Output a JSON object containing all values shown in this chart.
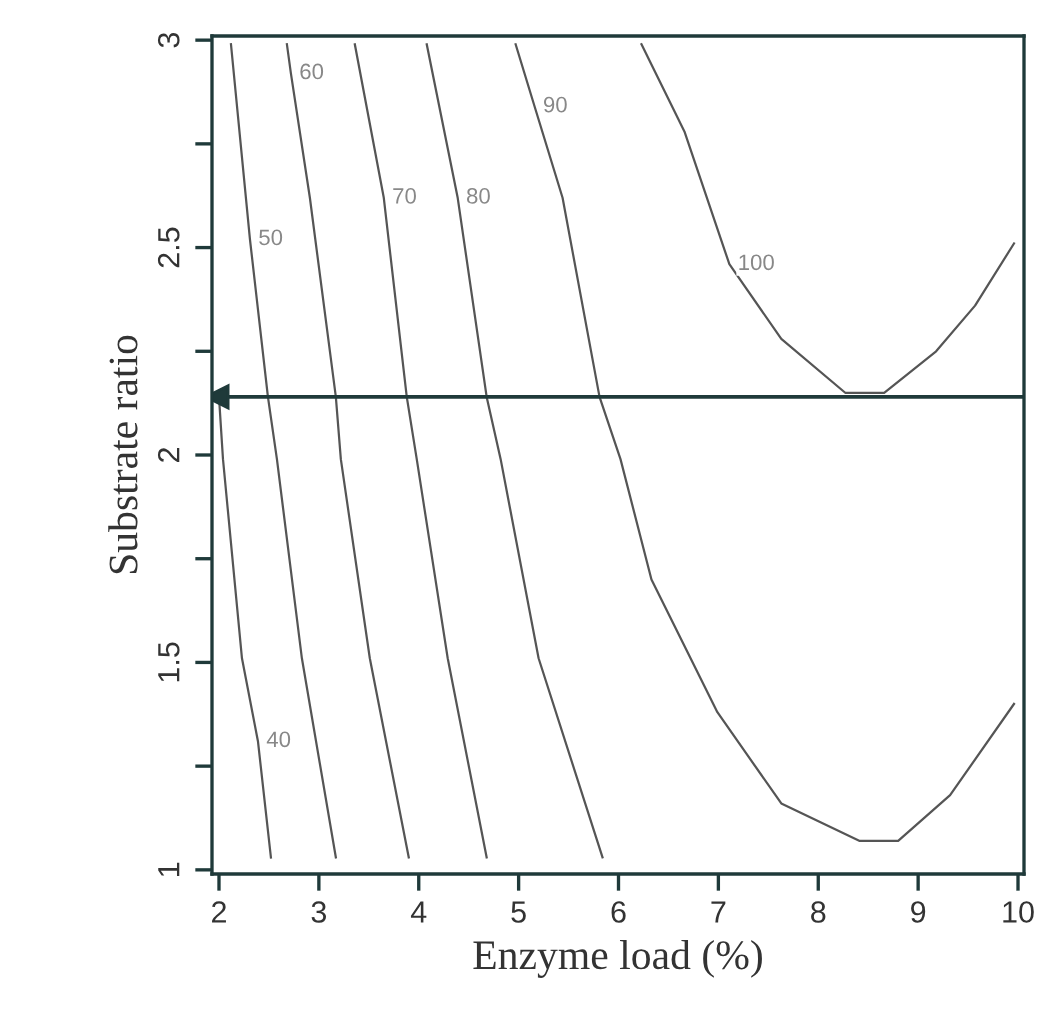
{
  "chart_data": {
    "type": "line",
    "xlabel": "Enzyme load (%)",
    "ylabel": "Substrate ratio",
    "xlim": [
      1.93,
      10.06
    ],
    "ylim": [
      0.99,
      3.01
    ],
    "xticks": [
      2,
      3,
      4,
      5,
      6,
      7,
      8,
      9,
      10
    ],
    "yticks": [
      1,
      {
        "value": 1.25,
        "label": null
      },
      1.5,
      {
        "value": 1.75,
        "label": null
      },
      2,
      {
        "value": 2.25,
        "label": null
      },
      2.5,
      {
        "value": 2.75,
        "label": null
      },
      3
    ],
    "grid": false,
    "marker": "none",
    "line_style": "solid",
    "series": [
      {
        "color": "#555555",
        "x": [
          2.0,
          2.04,
          2.23,
          2.39,
          2.52
        ],
        "values": [
          2.14,
          1.99,
          1.51,
          1.31,
          1.03
        ]
      },
      {
        "color": "#555555",
        "x": [
          2.12,
          2.31,
          2.49,
          2.58,
          2.83,
          3.17
        ],
        "values": [
          2.99,
          2.52,
          2.14,
          1.99,
          1.51,
          1.03
        ]
      },
      {
        "color": "#555555",
        "x": [
          2.68,
          2.72,
          2.91,
          3.17,
          3.22,
          3.51,
          3.9
        ],
        "values": [
          2.99,
          2.92,
          2.62,
          2.14,
          1.99,
          1.51,
          1.03
        ]
      },
      {
        "color": "#555555",
        "x": [
          3.36,
          3.65,
          3.88,
          3.98,
          4.29,
          4.68
        ],
        "values": [
          2.99,
          2.62,
          2.14,
          1.99,
          1.51,
          1.03
        ]
      },
      {
        "color": "#555555",
        "x": [
          4.08,
          4.39,
          4.68,
          4.82,
          5.2,
          5.84
        ],
        "values": [
          2.99,
          2.62,
          2.14,
          1.99,
          1.51,
          1.03
        ]
      },
      {
        "color": "#555555",
        "x": [
          4.97,
          5.16,
          5.44,
          5.81,
          6.02,
          6.33,
          6.99,
          7.63,
          8.41,
          8.8,
          9.32,
          9.96
        ],
        "values": [
          2.99,
          2.84,
          2.62,
          2.14,
          1.99,
          1.7,
          1.38,
          1.16,
          1.07,
          1.07,
          1.18,
          1.4
        ]
      },
      {
        "color": "#555555",
        "x": [
          6.23,
          6.66,
          7.11,
          7.63,
          8.27,
          8.66,
          9.18,
          9.57,
          9.96
        ],
        "values": [
          2.99,
          2.78,
          2.46,
          2.28,
          2.15,
          2.15,
          2.25,
          2.36,
          2.51
        ]
      }
    ],
    "ref_lines": [
      {
        "axis": "y",
        "value": 2.14,
        "color": "#1f3a3a"
      }
    ],
    "annotations": [
      {
        "text": "40",
        "x": 2.39,
        "y": 1.31
      },
      {
        "text": "50",
        "x": 2.31,
        "y": 2.52
      },
      {
        "text": "60",
        "x": 2.72,
        "y": 2.92
      },
      {
        "text": "70",
        "x": 3.65,
        "y": 2.62
      },
      {
        "text": "80",
        "x": 4.39,
        "y": 2.62
      },
      {
        "text": "90",
        "x": 5.16,
        "y": 2.84
      },
      {
        "text": "100",
        "x": 7.11,
        "y": 2.46
      }
    ]
  }
}
